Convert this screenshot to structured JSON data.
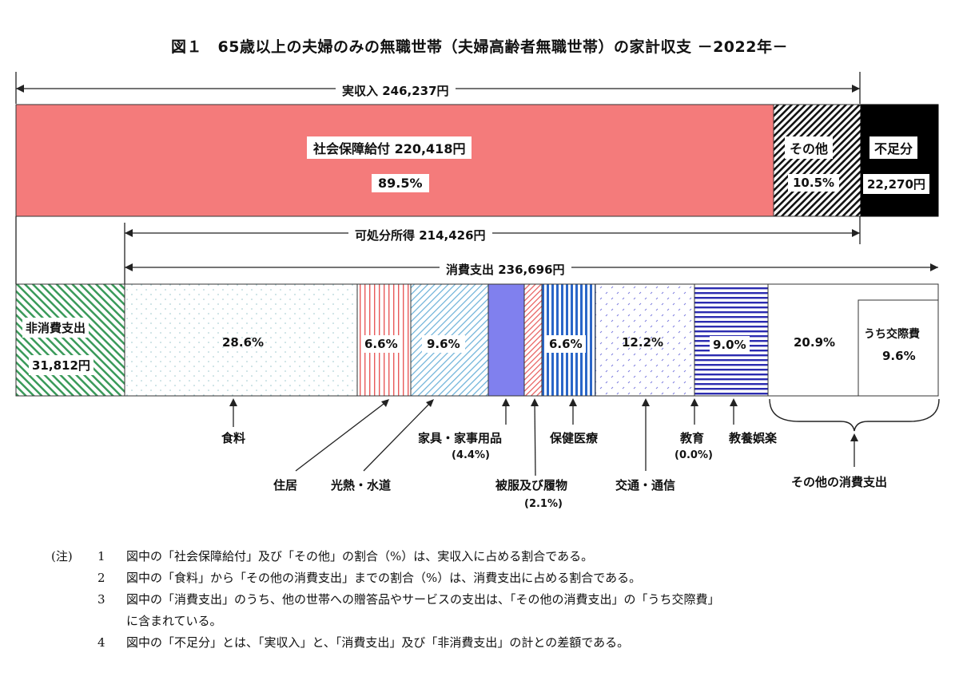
{
  "chart_data": {
    "type": "bar",
    "title": "図１　65歳以上の夫婦のみの無職世帯（夫婦高齢者無職世帯）の家計収支 －2022年－",
    "income": {
      "label": "実収入 246,237円",
      "total": 246237,
      "segments": [
        {
          "key": "social",
          "label": "社会保障給付 220,418円",
          "value": 220418,
          "pct_label": "89.5%",
          "color": "#f47b7b"
        },
        {
          "key": "other",
          "label": "その他",
          "value": 25819,
          "pct_label": "10.5%",
          "pattern": "diag-dense"
        },
        {
          "key": "deficit",
          "label": "不足分",
          "value": 22270,
          "value_label": "22,270円",
          "color": "#000000"
        }
      ]
    },
    "disposable": {
      "label": "可処分所得 214,426円",
      "value": 214426
    },
    "consumption": {
      "label": "消費支出 236,696円",
      "value": 236696
    },
    "non_consumption": {
      "label": "非消費支出",
      "value_label": "31,812円",
      "value": 31812
    },
    "expense_categories": [
      {
        "key": "food",
        "name": "食料",
        "pct": 28.6,
        "pct_label": "28.6%"
      },
      {
        "key": "housing",
        "name": "住居",
        "pct": 6.6,
        "pct_label": "6.6%"
      },
      {
        "key": "utilities",
        "name": "光熱・水道",
        "pct": 9.6,
        "pct_label": "9.6%"
      },
      {
        "key": "furniture",
        "name": "家具・家事用品",
        "pct": 4.4,
        "note": "(4.4%)"
      },
      {
        "key": "clothing",
        "name": "被服及び履物",
        "pct": 2.1,
        "note": "(2.1%)"
      },
      {
        "key": "medical",
        "name": "保健医療",
        "pct": 6.6,
        "pct_label": "6.6%"
      },
      {
        "key": "transport",
        "name": "交通・通信",
        "pct": 12.2,
        "pct_label": "12.2%"
      },
      {
        "key": "education",
        "name": "教育",
        "pct": 0.0,
        "note": "(0.0%)"
      },
      {
        "key": "recreation",
        "name": "教養娯楽",
        "pct": 9.0,
        "pct_label": "9.0%"
      },
      {
        "key": "other_consumption",
        "name": "その他の消費支出",
        "pct": 20.9,
        "pct_label": "20.9%",
        "sub": {
          "name": "うち交際費",
          "pct": 9.6,
          "pct_label": "9.6%"
        }
      }
    ]
  },
  "notes": {
    "head": "(注)",
    "items": [
      {
        "num": "1",
        "text": "図中の「社会保障給付」及び「その他」の割合（%）は、実収入に占める割合である。"
      },
      {
        "num": "2",
        "text": "図中の「食料」から「その他の消費支出」までの割合（%）は、消費支出に占める割合である。"
      },
      {
        "num": "3",
        "text": "図中の「消費支出」のうち、他の世帯への贈答品やサービスの支出は、「その他の消費支出」の「うち交際費」"
      },
      {
        "num": "",
        "text": "に含まれている。"
      },
      {
        "num": "4",
        "text": "図中の「不足分」とは、「実収入」と、「消費支出」及び「非消費支出」の計との差額である。"
      }
    ]
  },
  "colors": {
    "social": "#f47b7b",
    "furniture": "#8080ee",
    "medical_stripe": "#2a66c8",
    "recreation_stripe": "#2b2bb0",
    "housing_stripe": "#e85a5a",
    "non_consumption_stripe": "#3a9a5a",
    "deficit": "#000000"
  }
}
